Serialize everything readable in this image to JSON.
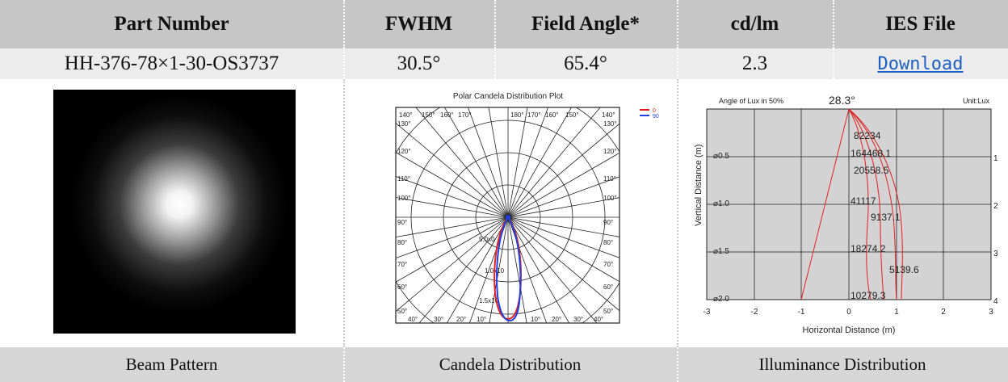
{
  "header": {
    "part_number": "Part Number",
    "fwhm": "FWHM",
    "field_angle": "Field Angle*",
    "cd_lm": "cd/lm",
    "ies_file": "IES File"
  },
  "values": {
    "part_number": "HH-376-78×1-30-OS3737",
    "fwhm": "30.5°",
    "field_angle": "65.4°",
    "cd_lm": "2.3",
    "ies_link": "Download"
  },
  "captions": {
    "beam": "Beam Pattern",
    "candela": "Candela Distribution",
    "illuminance": "Illuminance Distribution"
  },
  "polar_plot": {
    "title": "Polar Candela Distribution Plot",
    "legend": [
      {
        "name": "0",
        "color": "#e02020"
      },
      {
        "name": "90",
        "color": "#2040e0"
      }
    ],
    "left_angles": [
      "140°",
      "150°",
      "160°",
      "170°",
      "130°",
      "120°",
      "110°",
      "100°",
      "90°",
      "80°",
      "70°",
      "60°",
      "50°",
      "40°",
      "30°",
      "20°",
      "10°"
    ],
    "top_angles": [
      "180°",
      "170°",
      "160°",
      "150°",
      "140°",
      "130°"
    ],
    "right_angles": [
      "120°",
      "110°",
      "100°",
      "90°",
      "80°",
      "70°",
      "60°",
      "50°"
    ],
    "bottom_angles": [
      "10°",
      "20°",
      "30°",
      "40°"
    ],
    "ring_labels": [
      "5.0x0",
      "1.0x10",
      "1.5x10"
    ]
  },
  "illuminance_plot": {
    "title_left": "Angle of Lux in 50%",
    "angle_value": "28.3°",
    "unit": "Unit:Lux",
    "ylabel": "Vertical Distance (m)",
    "xlabel": "Horizontal Distance (m)",
    "x_ticks": [
      "-3",
      "-2",
      "-1",
      "0",
      "1",
      "2",
      "3"
    ],
    "right_ticks": [
      "1",
      "2",
      "3",
      "4"
    ],
    "diameters": [
      "⌀0.5",
      "⌀1.0",
      "⌀1.5",
      "⌀2.0"
    ],
    "labels": [
      "82234",
      "164468.1",
      "20558.5",
      "41117",
      "9137.1",
      "18274.2",
      "5139.6",
      "10279.3"
    ]
  }
}
